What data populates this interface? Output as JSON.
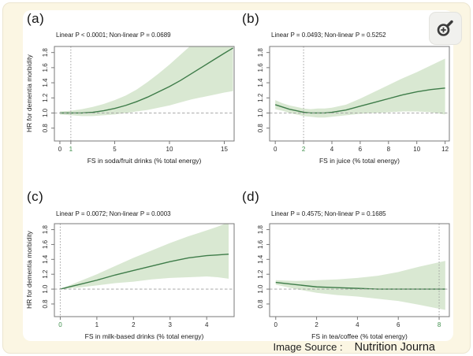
{
  "colors": {
    "page_background": "#fbf6e3",
    "card_background": "#ffffff",
    "band": "#d9e8d2",
    "line": "#3e7c49",
    "reference_line": "#9e9e9e",
    "axis": "#787878",
    "tick_label": "#2b2b2b",
    "ref_tick_label": "#3e8e4b",
    "icon_glyph": "#3c3c3c"
  },
  "toolbar": {
    "zoom_button": "zoom-in-magnifier"
  },
  "caption": {
    "prefix": "Image Source :",
    "source": "Nutrition Journa"
  },
  "chart_data": [
    {
      "type": "line",
      "panel_label": "(a)",
      "subtitle": "Linear P < 0.0001; Non-linear P = 0.0689",
      "xlabel": "FS in soda/fruit drinks (% total energy)",
      "ylabel": "HR for dementia morbidity",
      "xlim": [
        -0.5,
        15.9
      ],
      "ylim": [
        0.63,
        1.88
      ],
      "xticks": [
        0,
        1,
        5,
        10,
        15
      ],
      "yticks": [
        0.8,
        1.0,
        1.2,
        1.4,
        1.6,
        1.8
      ],
      "ref_x": 1,
      "hline": 1.0,
      "x": [
        0,
        1,
        2,
        3,
        4,
        5,
        6,
        7,
        8,
        9,
        10,
        11,
        12,
        13,
        14,
        15,
        15.8
      ],
      "y": [
        1.0,
        1.0,
        1.0,
        1.01,
        1.03,
        1.06,
        1.1,
        1.15,
        1.21,
        1.28,
        1.35,
        1.43,
        1.52,
        1.61,
        1.7,
        1.79,
        1.86
      ],
      "lo": [
        0.98,
        0.97,
        0.96,
        0.96,
        0.97,
        0.98,
        1.0,
        1.02,
        1.04,
        1.07,
        1.1,
        1.14,
        1.18,
        1.21,
        1.24,
        1.27,
        1.29
      ],
      "hi": [
        1.02,
        1.03,
        1.05,
        1.08,
        1.12,
        1.17,
        1.23,
        1.31,
        1.41,
        1.52,
        1.64,
        1.77,
        1.9,
        2.02,
        2.14,
        2.26,
        2.35
      ]
    },
    {
      "type": "line",
      "panel_label": "(b)",
      "subtitle": "Linear P = 0.0493; Non-linear P = 0.5252",
      "xlabel": "FS in juice (% total energy)",
      "ylabel": "",
      "xlim": [
        -0.4,
        12.3
      ],
      "ylim": [
        0.63,
        1.88
      ],
      "xticks": [
        0,
        2,
        4,
        6,
        8,
        10,
        12
      ],
      "yticks": [
        0.8,
        1.0,
        1.2,
        1.4,
        1.6,
        1.8
      ],
      "ref_x": 2,
      "hline": 1.0,
      "x": [
        0,
        0.5,
        1,
        1.5,
        2,
        2.5,
        3,
        3.5,
        4,
        5,
        6,
        7,
        8,
        9,
        10,
        11,
        12
      ],
      "y": [
        1.11,
        1.08,
        1.05,
        1.03,
        1.01,
        1.0,
        1.0,
        1.0,
        1.01,
        1.04,
        1.09,
        1.14,
        1.19,
        1.24,
        1.28,
        1.31,
        1.33
      ],
      "lo": [
        1.05,
        1.03,
        1.0,
        0.98,
        0.96,
        0.95,
        0.94,
        0.94,
        0.95,
        0.97,
        0.99,
        1.0,
        1.01,
        1.02,
        1.02,
        1.01,
        0.98
      ],
      "hi": [
        1.17,
        1.13,
        1.1,
        1.08,
        1.06,
        1.05,
        1.06,
        1.06,
        1.07,
        1.11,
        1.19,
        1.28,
        1.37,
        1.46,
        1.54,
        1.63,
        1.72
      ]
    },
    {
      "type": "line",
      "panel_label": "(c)",
      "subtitle": "Linear P = 0.0072; Non-linear P = 0.0003",
      "xlabel": "FS in milk-based drinks (% total energy)",
      "ylabel": "HR for dementia morbidity",
      "xlim": [
        -0.16,
        4.75
      ],
      "ylim": [
        0.63,
        1.88
      ],
      "xticks": [
        0,
        1,
        2,
        3,
        4
      ],
      "yticks": [
        0.8,
        1.0,
        1.2,
        1.4,
        1.6,
        1.8
      ],
      "ref_x": 0,
      "hline": 1.0,
      "x": [
        0,
        0.25,
        0.5,
        1,
        1.5,
        2,
        2.5,
        3,
        3.5,
        4,
        4.3,
        4.6
      ],
      "y": [
        1.0,
        1.03,
        1.06,
        1.12,
        1.19,
        1.25,
        1.31,
        1.37,
        1.42,
        1.45,
        1.46,
        1.47
      ],
      "lo": [
        1.0,
        1.01,
        1.02,
        1.05,
        1.08,
        1.1,
        1.13,
        1.15,
        1.16,
        1.17,
        1.16,
        1.14
      ],
      "hi": [
        1.0,
        1.05,
        1.1,
        1.2,
        1.31,
        1.42,
        1.52,
        1.62,
        1.71,
        1.79,
        1.84,
        1.9
      ]
    },
    {
      "type": "line",
      "panel_label": "(d)",
      "subtitle": "Linear P = 0.4575; Non-linear P = 0.1685",
      "xlabel": "FS in tea/coffee (% total energy)",
      "ylabel": "",
      "xlim": [
        -0.3,
        8.5
      ],
      "ylim": [
        0.63,
        1.88
      ],
      "xticks": [
        0,
        2,
        4,
        6,
        8
      ],
      "yticks": [
        0.8,
        1.0,
        1.2,
        1.4,
        1.6,
        1.8
      ],
      "ref_x": 8,
      "hline": 1.0,
      "x": [
        0,
        1,
        2,
        3,
        4,
        5,
        6,
        7,
        8.3
      ],
      "y": [
        1.09,
        1.06,
        1.03,
        1.02,
        1.01,
        1.0,
        1.0,
        1.0,
        1.0
      ],
      "lo": [
        1.06,
        1.0,
        0.95,
        0.92,
        0.9,
        0.87,
        0.84,
        0.79,
        0.72
      ],
      "hi": [
        1.12,
        1.11,
        1.12,
        1.13,
        1.15,
        1.18,
        1.23,
        1.3,
        1.38
      ]
    }
  ]
}
